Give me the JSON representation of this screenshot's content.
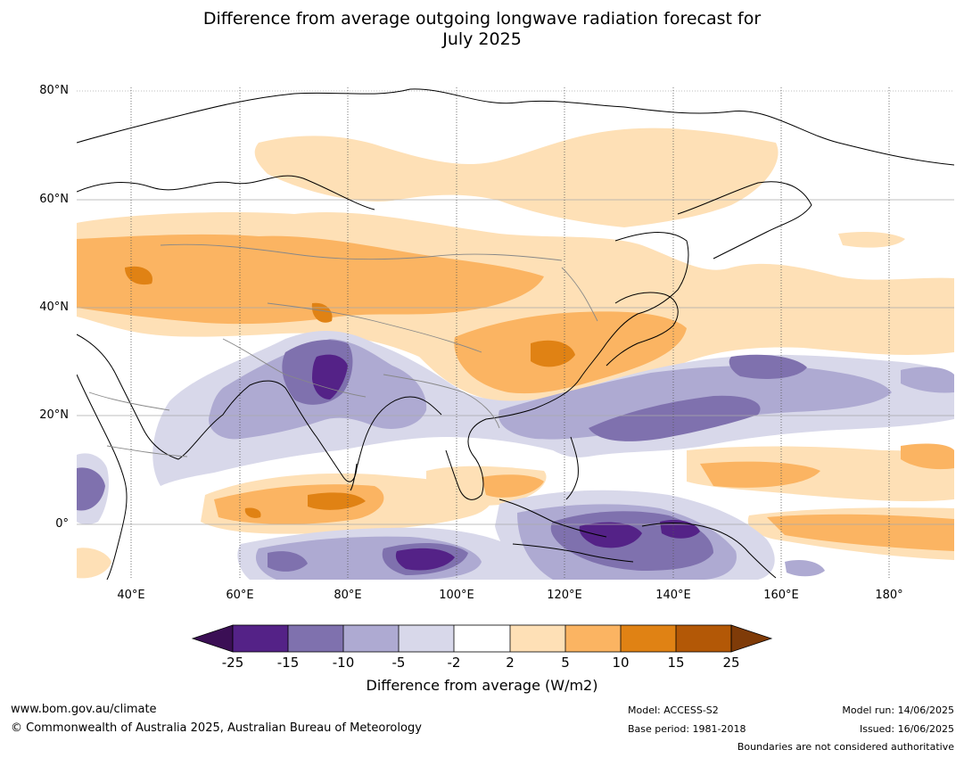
{
  "title": {
    "line1": "Difference from average outgoing longwave radiation forecast for",
    "line2": "July 2025"
  },
  "map": {
    "lat_labels": [
      "80°N",
      "60°N",
      "40°N",
      "20°N",
      "0°"
    ],
    "lon_labels": [
      "40°E",
      "60°E",
      "80°E",
      "100°E",
      "120°E",
      "140°E",
      "160°E",
      "180°"
    ]
  },
  "colorbar": {
    "ticks": [
      "-25",
      "-15",
      "-10",
      "-5",
      "-2",
      "2",
      "5",
      "10",
      "15",
      "25"
    ],
    "label": "Difference from average (W/m2)",
    "colors": [
      "#3b0f55",
      "#542287",
      "#7f71ae",
      "#aeaad2",
      "#d8d8ea",
      "#ffffff",
      "#fee0b6",
      "#fbb462",
      "#e08214",
      "#b35806",
      "#7f3b08"
    ]
  },
  "footer": {
    "website": "www.bom.gov.au/climate",
    "copyright": "© Commonwealth of Australia 2025, Australian Bureau of Meteorology",
    "model": "Model: ACCESS-S2",
    "base_period": "Base period: 1981-2018",
    "model_run": "Model run: 14/06/2025",
    "issued": "Issued: 16/06/2025",
    "boundaries": "Boundaries are not considered authoritative"
  }
}
